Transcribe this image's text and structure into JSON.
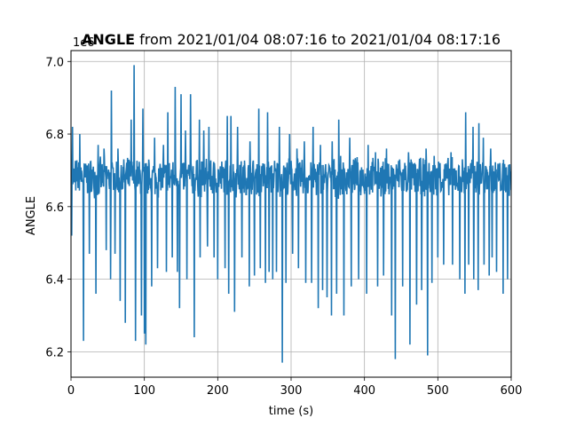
{
  "chart_data": {
    "type": "line",
    "title_bold": "ANGLE",
    "title_rest": " from 2021/01/04 08:07:16 to 2021/01/04 08:17:16",
    "xlabel": "time (s)",
    "ylabel": "ANGLE",
    "offset_label": "1e6",
    "xlim": [
      0,
      600
    ],
    "ylim": [
      6.13,
      7.03
    ],
    "xticks": [
      0,
      100,
      200,
      300,
      400,
      500,
      600
    ],
    "yticks": [
      6.2,
      6.4,
      6.6,
      6.8,
      7.0
    ],
    "grid": true,
    "series": [
      {
        "color": "#1f77b4",
        "band": [
          6.62,
          6.74
        ],
        "baseline": 6.68,
        "spikes_up": [
          [
            2,
            6.82
          ],
          [
            12,
            6.8
          ],
          [
            37,
            6.77
          ],
          [
            45,
            6.76
          ],
          [
            55,
            6.92
          ],
          [
            64,
            6.76
          ],
          [
            82,
            6.84
          ],
          [
            86,
            6.99
          ],
          [
            98,
            6.87
          ],
          [
            114,
            6.79
          ],
          [
            126,
            6.77
          ],
          [
            132,
            6.86
          ],
          [
            142,
            6.93
          ],
          [
            150,
            6.91
          ],
          [
            156,
            6.81
          ],
          [
            163,
            6.91
          ],
          [
            175,
            6.84
          ],
          [
            181,
            6.81
          ],
          [
            188,
            6.82
          ],
          [
            195,
            6.81
          ],
          [
            200,
            6.92
          ],
          [
            213,
            6.85
          ],
          [
            218,
            6.85
          ],
          [
            227,
            6.82
          ],
          [
            244,
            6.78
          ],
          [
            256,
            6.87
          ],
          [
            268,
            6.86
          ],
          [
            284,
            6.82
          ],
          [
            298,
            6.8
          ],
          [
            308,
            6.76
          ],
          [
            318,
            6.78
          ],
          [
            330,
            6.82
          ],
          [
            340,
            6.77
          ],
          [
            356,
            6.78
          ],
          [
            365,
            6.84
          ],
          [
            380,
            6.79
          ],
          [
            392,
            6.8
          ],
          [
            405,
            6.77
          ],
          [
            415,
            6.75
          ],
          [
            430,
            6.76
          ],
          [
            448,
            6.73
          ],
          [
            460,
            6.75
          ],
          [
            471,
            6.74
          ],
          [
            484,
            6.76
          ],
          [
            495,
            6.74
          ],
          [
            503,
            6.72
          ],
          [
            518,
            6.75
          ],
          [
            530,
            6.74
          ],
          [
            538,
            6.86
          ],
          [
            548,
            6.82
          ],
          [
            556,
            6.83
          ],
          [
            562,
            6.79
          ],
          [
            572,
            6.76
          ]
        ],
        "spikes_down": [
          [
            1,
            6.52
          ],
          [
            17,
            6.23
          ],
          [
            25,
            6.47
          ],
          [
            34,
            6.36
          ],
          [
            48,
            6.48
          ],
          [
            54,
            6.4
          ],
          [
            60,
            6.47
          ],
          [
            67,
            6.34
          ],
          [
            74,
            6.28
          ],
          [
            88,
            6.23
          ],
          [
            96,
            6.3
          ],
          [
            100,
            6.25
          ],
          [
            102,
            6.22
          ],
          [
            110,
            6.38
          ],
          [
            118,
            6.43
          ],
          [
            130,
            6.42
          ],
          [
            138,
            6.46
          ],
          [
            145,
            6.42
          ],
          [
            148,
            6.32
          ],
          [
            158,
            6.4
          ],
          [
            168,
            6.24
          ],
          [
            176,
            6.46
          ],
          [
            186,
            6.49
          ],
          [
            195,
            6.46
          ],
          [
            200,
            6.4
          ],
          [
            210,
            6.43
          ],
          [
            215,
            6.36
          ],
          [
            223,
            6.31
          ],
          [
            233,
            6.46
          ],
          [
            243,
            6.38
          ],
          [
            250,
            6.41
          ],
          [
            258,
            6.43
          ],
          [
            265,
            6.39
          ],
          [
            270,
            6.42
          ],
          [
            275,
            6.4
          ],
          [
            280,
            6.42
          ],
          [
            288,
            6.17
          ],
          [
            293,
            6.39
          ],
          [
            302,
            6.47
          ],
          [
            310,
            6.43
          ],
          [
            320,
            6.39
          ],
          [
            328,
            6.39
          ],
          [
            337,
            6.32
          ],
          [
            343,
            6.37
          ],
          [
            349,
            6.35
          ],
          [
            355,
            6.3
          ],
          [
            362,
            6.36
          ],
          [
            372,
            6.3
          ],
          [
            382,
            6.38
          ],
          [
            392,
            6.4
          ],
          [
            403,
            6.36
          ],
          [
            418,
            6.38
          ],
          [
            426,
            6.41
          ],
          [
            437,
            6.3
          ],
          [
            442,
            6.18
          ],
          [
            452,
            6.38
          ],
          [
            462,
            6.22
          ],
          [
            471,
            6.33
          ],
          [
            478,
            6.37
          ],
          [
            486,
            6.19
          ],
          [
            492,
            6.39
          ],
          [
            500,
            6.46
          ],
          [
            508,
            6.44
          ],
          [
            520,
            6.44
          ],
          [
            530,
            6.4
          ],
          [
            537,
            6.36
          ],
          [
            542,
            6.44
          ],
          [
            549,
            6.4
          ],
          [
            555,
            6.37
          ],
          [
            563,
            6.44
          ],
          [
            570,
            6.41
          ],
          [
            574,
            6.46
          ],
          [
            580,
            6.42
          ],
          [
            589,
            6.36
          ],
          [
            595,
            6.4
          ]
        ]
      }
    ]
  }
}
